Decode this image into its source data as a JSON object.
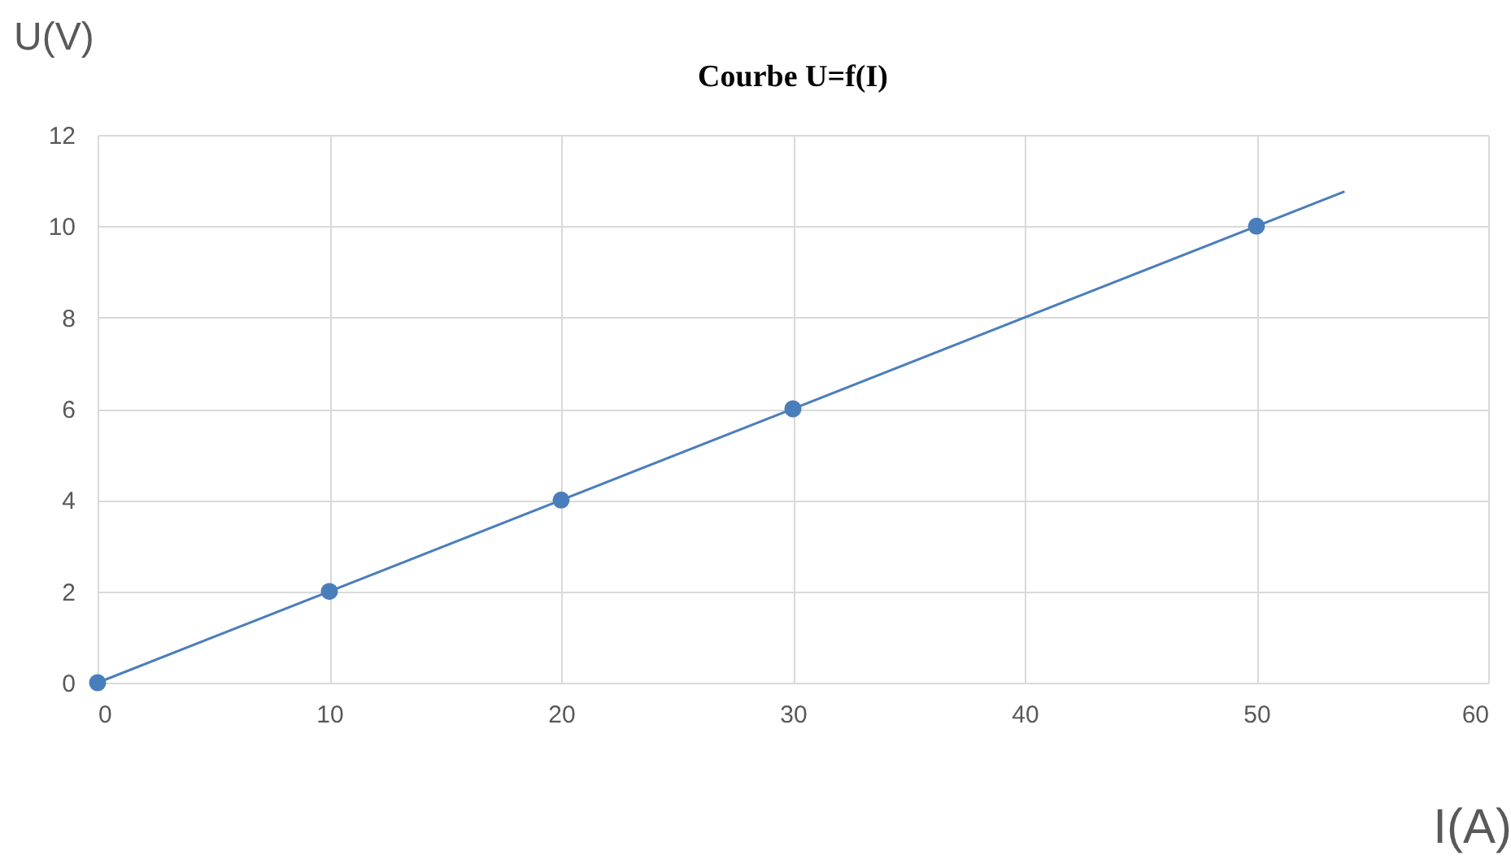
{
  "chart_data": {
    "type": "scatter",
    "title": "Courbe U=f(I)",
    "xlabel": "I(A)",
    "ylabel": "U(V)",
    "x": [
      0,
      10,
      20,
      30,
      50
    ],
    "series": [
      {
        "color": "#4a7ebb",
        "values": [
          0,
          2,
          4,
          6,
          10
        ],
        "marker": "circle"
      },
      {
        "type": "line",
        "color": "#4a7ebb",
        "x": [
          0,
          53.8
        ],
        "values": [
          0,
          10.76
        ],
        "marker": "none",
        "line_style": "solid"
      }
    ],
    "xlim": [
      0,
      60
    ],
    "xticks": [
      0,
      10,
      20,
      30,
      40,
      50,
      60
    ],
    "ylim": [
      0,
      12
    ],
    "yticks": [
      0,
      2,
      4,
      6,
      8,
      10,
      12
    ],
    "grid": true
  }
}
